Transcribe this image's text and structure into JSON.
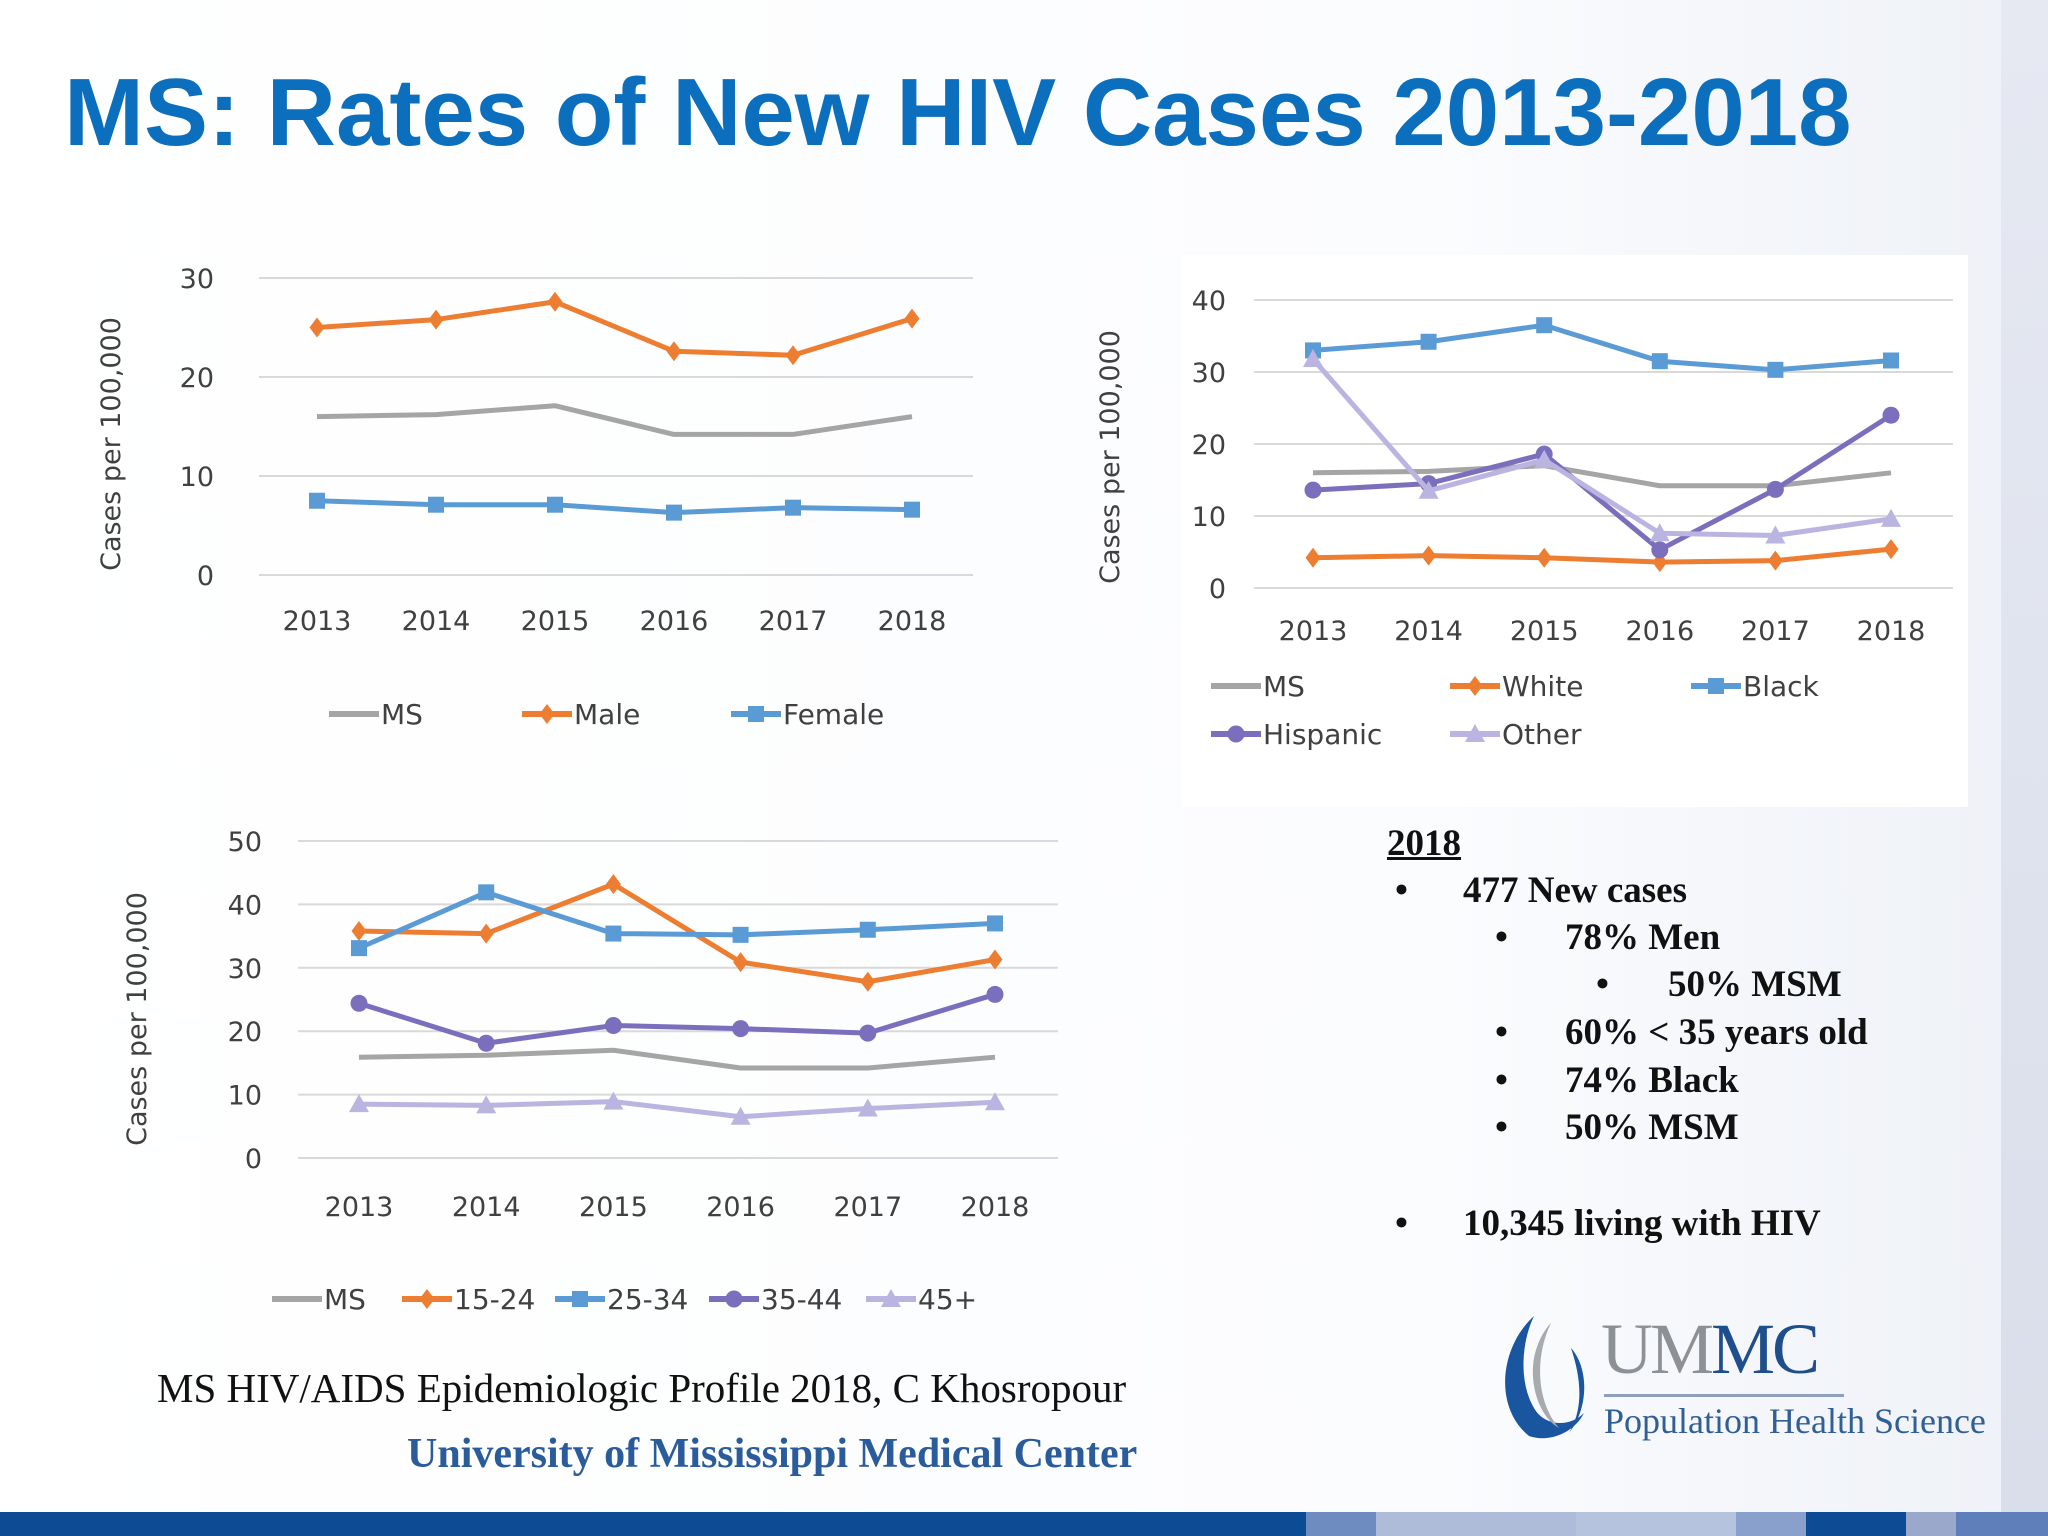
{
  "title": "MS: Rates of New HIV Cases 2013-2018",
  "chart_data": [
    {
      "type": "line",
      "categories": [
        "2013",
        "2014",
        "2015",
        "2016",
        "2017",
        "2018"
      ],
      "ylabel": "Cases per 100,000",
      "ylim": [
        0,
        30
      ],
      "yticks": [
        "0",
        "10",
        "20",
        "30"
      ],
      "grid": true,
      "legend_position": "bottom",
      "series": [
        {
          "name": "MS",
          "color": "#a5a5a5",
          "marker": "none",
          "values": [
            16,
            16.2,
            17.1,
            14.2,
            14.2,
            16
          ]
        },
        {
          "name": "Male",
          "color": "#ed7d31",
          "marker": "diamond",
          "values": [
            25,
            25.8,
            27.6,
            22.6,
            22.2,
            25.9
          ]
        },
        {
          "name": "Female",
          "color": "#5b9bd5",
          "marker": "square",
          "values": [
            7.5,
            7.1,
            7.1,
            6.3,
            6.8,
            6.6
          ]
        }
      ]
    },
    {
      "type": "line",
      "categories": [
        "2013",
        "2014",
        "2015",
        "2016",
        "2017",
        "2018"
      ],
      "ylabel": "Cases per 100,000",
      "ylim": [
        0,
        40
      ],
      "yticks": [
        "0",
        "10",
        "20",
        "30",
        "40"
      ],
      "grid": true,
      "legend_position": "bottom",
      "series": [
        {
          "name": "MS",
          "color": "#a5a5a5",
          "marker": "none",
          "values": [
            16,
            16.2,
            17,
            14.2,
            14.2,
            16
          ]
        },
        {
          "name": "White",
          "color": "#ed7d31",
          "marker": "diamond",
          "values": [
            4.2,
            4.5,
            4.2,
            3.6,
            3.8,
            5.4
          ]
        },
        {
          "name": "Black",
          "color": "#5b9bd5",
          "marker": "square",
          "values": [
            33,
            34.2,
            36.5,
            31.5,
            30.3,
            31.6
          ]
        },
        {
          "name": "Hispanic",
          "color": "#7b6fbd",
          "marker": "circle",
          "values": [
            13.6,
            14.5,
            18.6,
            5.3,
            13.7,
            24
          ]
        },
        {
          "name": "Other",
          "color": "#b9b4e0",
          "marker": "triangle",
          "values": [
            31.8,
            13.5,
            17.8,
            7.6,
            7.3,
            9.6
          ]
        }
      ]
    },
    {
      "type": "line",
      "categories": [
        "2013",
        "2014",
        "2015",
        "2016",
        "2017",
        "2018"
      ],
      "ylabel": "Cases per 100,000",
      "ylim": [
        0,
        50
      ],
      "yticks": [
        "0",
        "10",
        "20",
        "30",
        "40",
        "50"
      ],
      "grid": true,
      "legend_position": "bottom",
      "series": [
        {
          "name": "MS",
          "color": "#a5a5a5",
          "marker": "none",
          "values": [
            15.9,
            16.2,
            17,
            14.2,
            14.2,
            15.9
          ]
        },
        {
          "name": "15-24",
          "color": "#ed7d31",
          "marker": "diamond",
          "values": [
            35.8,
            35.4,
            43.2,
            30.9,
            27.8,
            31.3
          ]
        },
        {
          "name": "25-34",
          "color": "#5b9bd5",
          "marker": "square",
          "values": [
            33.1,
            41.9,
            35.4,
            35.2,
            36,
            37
          ]
        },
        {
          "name": "35-44",
          "color": "#7b6fbd",
          "marker": "circle",
          "values": [
            24.4,
            18.1,
            20.9,
            20.4,
            19.7,
            25.8
          ]
        },
        {
          "name": "45+",
          "color": "#b9b4e0",
          "marker": "triangle",
          "values": [
            8.5,
            8.3,
            8.9,
            6.5,
            7.8,
            8.8
          ]
        }
      ]
    }
  ],
  "stats": {
    "heading": "2018",
    "bullet": "•",
    "lines": [
      {
        "text": "477 New cases",
        "level": 1
      },
      {
        "text": "78% Men",
        "level": 2
      },
      {
        "text": "50% MSM",
        "level": 3
      },
      {
        "text": "60% < 35 years old",
        "level": 2
      },
      {
        "text": "74% Black",
        "level": 2
      },
      {
        "text": "50% MSM",
        "level": 2
      },
      {
        "text": "10,345 living with HIV",
        "level": 1
      }
    ]
  },
  "citation": "MS HIV/AIDS Epidemiologic Profile 2018, C Khosropour",
  "footer": {
    "university": "University of Mississippi Medical Center",
    "logo_word": "UMMC",
    "logo_sub": "Population Health Science"
  },
  "colors": {
    "title": "#0b6fbd",
    "bar": "#0d4c94",
    "accent_gray": "#8d9196"
  }
}
